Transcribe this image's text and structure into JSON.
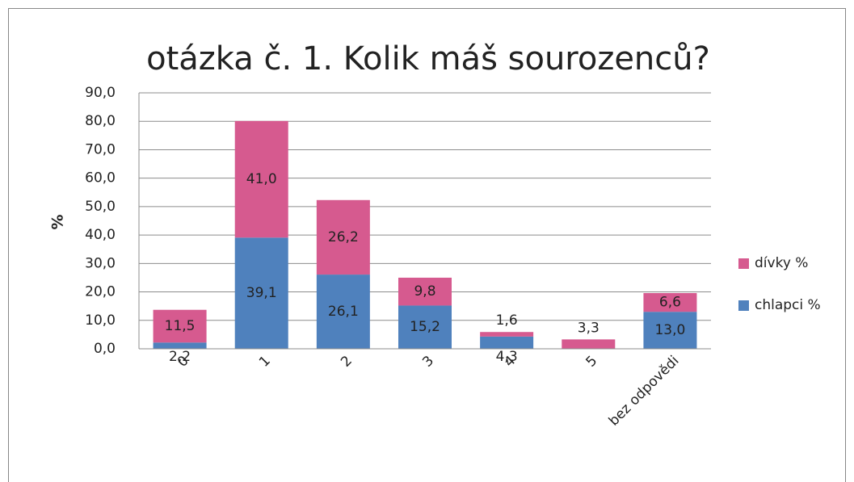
{
  "chart_data": {
    "type": "stacked_bar",
    "title": "otázka č. 1. Kolik máš sourozenců?",
    "y_label": "%",
    "categories": [
      "0",
      "1",
      "2",
      "3",
      "4",
      "5",
      "bez odpovědi"
    ],
    "series": [
      {
        "name": "chlapci %",
        "color": "#4f81bd",
        "values": [
          2.2,
          39.1,
          26.1,
          15.2,
          4.3,
          null,
          13.0
        ],
        "value_labels": [
          "2,2",
          "39,1",
          "26,1",
          "15,2",
          "4,3",
          null,
          "13,0"
        ]
      },
      {
        "name": "dívky %",
        "color": "#d65a8f",
        "values": [
          11.5,
          41.0,
          26.2,
          9.8,
          1.6,
          3.3,
          6.6
        ],
        "value_labels": [
          "11,5",
          "41,0",
          "26,2",
          "9,8",
          "1,6",
          "3,3",
          "6,6"
        ]
      }
    ],
    "ylim": [
      0,
      90
    ],
    "yticks": [
      {
        "value": 0,
        "label": "0,0"
      },
      {
        "value": 10,
        "label": "10,0"
      },
      {
        "value": 20,
        "label": "20,0"
      },
      {
        "value": 30,
        "label": "30,0"
      },
      {
        "value": 40,
        "label": "40,0"
      },
      {
        "value": 50,
        "label": "50,0"
      },
      {
        "value": 60,
        "label": "60,0"
      },
      {
        "value": 70,
        "label": "70,0"
      },
      {
        "value": 80,
        "label": "80,0"
      },
      {
        "value": 90,
        "label": "90,0"
      }
    ],
    "grid": true,
    "legend": "right"
  }
}
